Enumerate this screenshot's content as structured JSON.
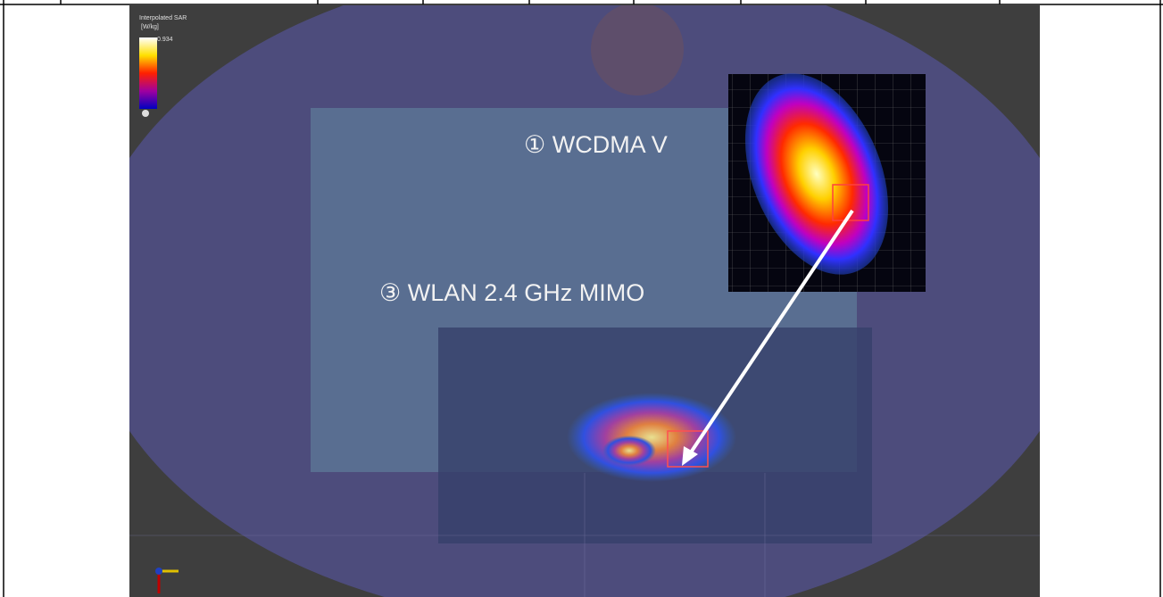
{
  "legend": {
    "title": "Interpolated SAR",
    "unit": "[W/kg]",
    "max": "0.934"
  },
  "labels": [
    "① WCDMA V",
    "③ WLAN 2.4 GHz MIMO"
  ]
}
